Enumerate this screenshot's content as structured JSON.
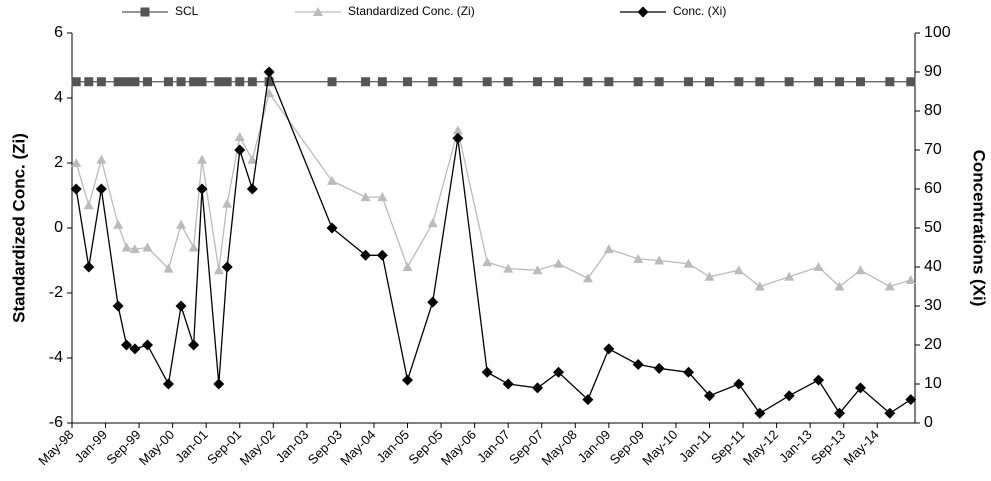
{
  "chart_data": {
    "type": "line",
    "ylabel": "Standardized Conc. (Zi)",
    "y2label": "Concentrations (Xi)",
    "legend": "top",
    "x": [
      "1998-06",
      "1998-09",
      "1998-12",
      "1999-04",
      "1999-06",
      "1999-08",
      "1999-11",
      "2000-04",
      "2000-07",
      "2000-10",
      "2000-12",
      "2001-04",
      "2001-06",
      "2001-09",
      "2001-12",
      "2002-04",
      "2003-07",
      "2004-03",
      "2004-07",
      "2005-01",
      "2005-07",
      "2006-01",
      "2006-08",
      "2007-01",
      "2007-08",
      "2008-01",
      "2008-08",
      "2009-01",
      "2009-08",
      "2010-01",
      "2010-08",
      "2011-01",
      "2011-08",
      "2012-01",
      "2012-08",
      "2013-03",
      "2013-08",
      "2014-01",
      "2014-08",
      "2015-01"
    ],
    "xlim": [
      "1998-05",
      "2015-02"
    ],
    "xticks": [
      {
        "value": "1998-05",
        "label": "May-98"
      },
      {
        "value": "1999-01",
        "label": "Jan-99"
      },
      {
        "value": "1999-09",
        "label": "Sep-99"
      },
      {
        "value": "2000-05",
        "label": "May-00"
      },
      {
        "value": "2001-01",
        "label": "Jan-01"
      },
      {
        "value": "2001-09",
        "label": "Sep-01"
      },
      {
        "value": "2002-05",
        "label": "May-02"
      },
      {
        "value": "2003-01",
        "label": "Jan-03"
      },
      {
        "value": "2003-09",
        "label": "Sep-03"
      },
      {
        "value": "2004-05",
        "label": "May-04"
      },
      {
        "value": "2005-01",
        "label": "Jan-05"
      },
      {
        "value": "2005-09",
        "label": "Sep-05"
      },
      {
        "value": "2006-05",
        "label": "May-06"
      },
      {
        "value": "2007-01",
        "label": "Jan-07"
      },
      {
        "value": "2007-09",
        "label": "Sep-07"
      },
      {
        "value": "2008-05",
        "label": "May-08"
      },
      {
        "value": "2009-01",
        "label": "Jan-09"
      },
      {
        "value": "2009-09",
        "label": "Sep-09"
      },
      {
        "value": "2010-05",
        "label": "May-10"
      },
      {
        "value": "2011-01",
        "label": "Jan-11"
      },
      {
        "value": "2011-09",
        "label": "Sep-11"
      },
      {
        "value": "2012-05",
        "label": "May-12"
      },
      {
        "value": "2013-01",
        "label": "Jan-13"
      },
      {
        "value": "2013-09",
        "label": "Sep-13"
      },
      {
        "value": "2014-05",
        "label": "May-14"
      }
    ],
    "ylim": [
      -6,
      6
    ],
    "yticks": [
      -6,
      -4,
      -2,
      0,
      2,
      4,
      6
    ],
    "y2lim": [
      0,
      100
    ],
    "y2ticks": [
      0,
      10,
      20,
      30,
      40,
      50,
      60,
      70,
      80,
      90,
      100
    ],
    "series": [
      {
        "name": "SCL",
        "color": "#555555",
        "marker": "square",
        "axis": "y",
        "values": [
          4.5,
          4.5,
          4.5,
          4.5,
          4.5,
          4.5,
          4.5,
          4.5,
          4.5,
          4.5,
          4.5,
          4.5,
          4.5,
          4.5,
          4.5,
          4.5,
          4.5,
          4.5,
          4.5,
          4.5,
          4.5,
          4.5,
          4.5,
          4.5,
          4.5,
          4.5,
          4.5,
          4.5,
          4.5,
          4.5,
          4.5,
          4.5,
          4.5,
          4.5,
          4.5,
          4.5,
          4.5,
          4.5,
          4.5,
          4.5
        ]
      },
      {
        "name": "Standardized Conc. (Zi)",
        "color": "#bbbbbb",
        "marker": "triangle",
        "axis": "y",
        "values": [
          2.0,
          0.7,
          2.1,
          0.1,
          -0.6,
          -0.65,
          -0.6,
          -1.25,
          0.1,
          -0.6,
          2.1,
          -1.3,
          0.75,
          2.8,
          2.1,
          4.15,
          1.45,
          0.95,
          0.95,
          -1.2,
          0.15,
          3.0,
          -1.05,
          -1.25,
          -1.3,
          -1.1,
          -1.55,
          -0.65,
          -0.95,
          -1.0,
          -1.1,
          -1.5,
          -1.3,
          -1.8,
          -1.5,
          -1.2,
          -1.8,
          -1.3,
          -1.8,
          -1.6
        ]
      },
      {
        "name": "Conc. (Xi)",
        "color": "#000000",
        "marker": "diamond",
        "axis": "y2",
        "values": [
          60,
          40,
          60,
          30,
          20,
          19,
          20,
          10,
          30,
          20,
          60,
          10,
          40,
          70,
          60,
          90,
          50,
          43,
          43,
          11,
          31,
          73,
          13,
          10,
          9,
          13,
          6,
          19,
          15,
          14,
          13,
          7,
          10,
          2.5,
          7,
          11,
          2.5,
          9,
          2.5,
          6
        ]
      }
    ]
  }
}
